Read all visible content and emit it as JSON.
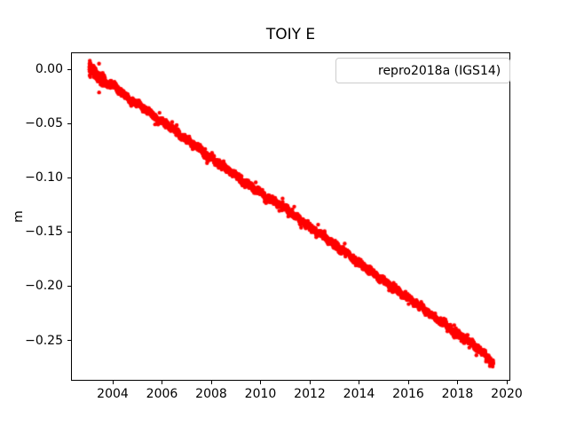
{
  "figure": {
    "background_color": "#ffffff",
    "text_color": "#000000",
    "spine_color": "#000000",
    "legend_border_color": "#cccccc"
  },
  "chart_data": {
    "type": "scatter",
    "title": "TOIY E",
    "xlabel": "",
    "ylabel": "m",
    "grid": false,
    "xlim": [
      2002.306,
      2020.144
    ],
    "ylim": [
      -0.2868,
      0.0156
    ],
    "x_ticks": [
      2004,
      2006,
      2008,
      2010,
      2012,
      2014,
      2016,
      2018,
      2020
    ],
    "x_tick_labels": [
      "2004",
      "2006",
      "2008",
      "2010",
      "2012",
      "2014",
      "2016",
      "2018",
      "2020"
    ],
    "y_ticks": [
      0.0,
      -0.05,
      -0.1,
      -0.15,
      -0.2,
      -0.25
    ],
    "y_tick_labels": [
      "0.00",
      "−0.05",
      "−0.10",
      "−0.15",
      "−0.20",
      "−0.25"
    ],
    "legend": {
      "label": "repro2018a (IGS14)",
      "position": "upper right",
      "marker_color": "#ff0000"
    },
    "series": [
      {
        "name": "repro2018a (IGS14)",
        "color": "#ff0000",
        "marker": "point",
        "marker_radius_px": 2.2,
        "points_per_year": 365,
        "noise_std_m": 0.0013,
        "x_start": 2003.05,
        "x_end": 2019.45,
        "trend_m_per_year": -0.0165,
        "samples": [
          [
            2003.05,
            0.002
          ],
          [
            2003.15,
            0.0
          ],
          [
            2003.3,
            -0.003
          ],
          [
            2003.5,
            -0.009
          ],
          [
            2003.7,
            -0.012
          ],
          [
            2003.9,
            -0.014
          ],
          [
            2004.1,
            -0.016
          ],
          [
            2004.4,
            -0.022
          ],
          [
            2004.7,
            -0.028
          ],
          [
            2005.0,
            -0.032
          ],
          [
            2005.3,
            -0.036
          ],
          [
            2005.6,
            -0.042
          ],
          [
            2006.0,
            -0.049
          ],
          [
            2006.3,
            -0.052
          ],
          [
            2006.6,
            -0.058
          ],
          [
            2007.0,
            -0.065
          ],
          [
            2007.4,
            -0.071
          ],
          [
            2007.7,
            -0.077
          ],
          [
            2008.0,
            -0.082
          ],
          [
            2008.4,
            -0.088
          ],
          [
            2008.7,
            -0.093
          ],
          [
            2009.0,
            -0.098
          ],
          [
            2009.4,
            -0.105
          ],
          [
            2009.7,
            -0.109
          ],
          [
            2010.0,
            -0.114
          ],
          [
            2010.25,
            -0.119
          ],
          [
            2010.45,
            -0.12
          ],
          [
            2010.65,
            -0.123
          ],
          [
            2011.0,
            -0.128
          ],
          [
            2011.4,
            -0.135
          ],
          [
            2011.7,
            -0.14
          ],
          [
            2012.0,
            -0.146
          ],
          [
            2012.4,
            -0.151
          ],
          [
            2012.7,
            -0.156
          ],
          [
            2013.0,
            -0.162
          ],
          [
            2013.4,
            -0.168
          ],
          [
            2013.7,
            -0.173
          ],
          [
            2014.0,
            -0.179
          ],
          [
            2014.4,
            -0.185
          ],
          [
            2014.7,
            -0.19
          ],
          [
            2015.0,
            -0.195
          ],
          [
            2015.4,
            -0.201
          ],
          [
            2015.7,
            -0.207
          ],
          [
            2016.0,
            -0.211
          ],
          [
            2016.4,
            -0.217
          ],
          [
            2016.7,
            -0.222
          ],
          [
            2017.0,
            -0.228
          ],
          [
            2017.4,
            -0.234
          ],
          [
            2017.7,
            -0.239
          ],
          [
            2018.0,
            -0.244
          ],
          [
            2018.4,
            -0.25
          ],
          [
            2018.7,
            -0.255
          ],
          [
            2019.0,
            -0.261
          ],
          [
            2019.2,
            -0.265
          ],
          [
            2019.45,
            -0.271
          ]
        ]
      }
    ]
  }
}
